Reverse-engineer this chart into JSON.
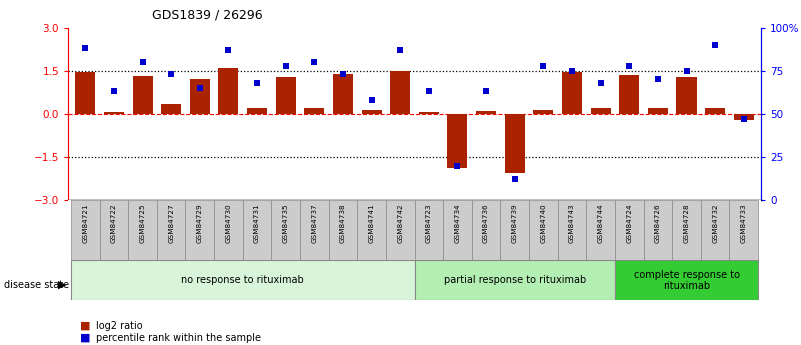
{
  "title": "GDS1839 / 26296",
  "samples": [
    "GSM84721",
    "GSM84722",
    "GSM84725",
    "GSM84727",
    "GSM84729",
    "GSM84730",
    "GSM84731",
    "GSM84735",
    "GSM84737",
    "GSM84738",
    "GSM84741",
    "GSM84742",
    "GSM84723",
    "GSM84734",
    "GSM84736",
    "GSM84739",
    "GSM84740",
    "GSM84743",
    "GSM84744",
    "GSM84724",
    "GSM84726",
    "GSM84728",
    "GSM84732",
    "GSM84733"
  ],
  "log2_ratio": [
    1.47,
    0.07,
    1.32,
    0.35,
    1.22,
    1.6,
    0.19,
    1.28,
    0.2,
    1.38,
    0.13,
    1.48,
    0.07,
    -1.88,
    0.1,
    -2.05,
    0.15,
    1.47,
    0.19,
    1.35,
    0.22,
    1.28,
    0.2,
    -0.22
  ],
  "percentile": [
    88,
    63,
    80,
    73,
    65,
    87,
    68,
    78,
    80,
    73,
    58,
    87,
    63,
    20,
    63,
    12,
    78,
    75,
    68,
    78,
    70,
    75,
    90,
    47
  ],
  "groups": [
    {
      "label": "no response to rituximab",
      "start": 0,
      "end": 12,
      "color": "#d9f5d9"
    },
    {
      "label": "partial response to rituximab",
      "start": 12,
      "end": 19,
      "color": "#b3eeb3"
    },
    {
      "label": "complete response to\nrituximab",
      "start": 19,
      "end": 24,
      "color": "#33cc33"
    }
  ],
  "bar_color": "#aa2200",
  "dot_color": "#0000cc",
  "left_ylim": [
    -3,
    3
  ],
  "right_ylim": [
    0,
    100
  ],
  "left_yticks": [
    -3,
    -1.5,
    0,
    1.5,
    3
  ],
  "right_yticks": [
    0,
    25,
    50,
    75,
    100
  ],
  "right_yticklabels": [
    "0",
    "25",
    "50",
    "75",
    "100%"
  ],
  "hline_dotted": [
    -1.5,
    1.5
  ],
  "hline_dashed": [
    0
  ],
  "legend_labels": [
    "log2 ratio",
    "percentile rank within the sample"
  ],
  "legend_colors": [
    "#aa2200",
    "#0000cc"
  ]
}
